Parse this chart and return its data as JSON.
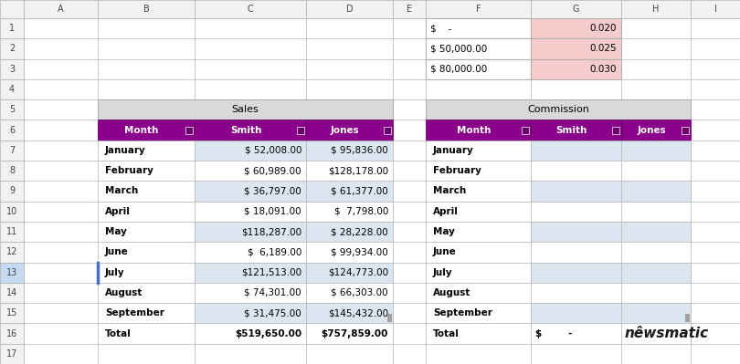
{
  "bg_color": "#ffffff",
  "grid_color": "#b0b0b0",
  "header_bg": "#f2f2f2",
  "purple_bg": "#8B008B",
  "sales_title_bg": "#d9d9d9",
  "commission_title_bg": "#d9d9d9",
  "alt_row_bg": "#dce6f1",
  "salmon_bg": "#f4cccc",
  "top_f_values": [
    "$    -",
    "$ 50,000.00",
    "$ 80,000.00"
  ],
  "top_g_values": [
    "0.020",
    "0.025",
    "0.030"
  ],
  "months": [
    "January",
    "February",
    "March",
    "April",
    "May",
    "June",
    "July",
    "August",
    "September"
  ],
  "smith_values": [
    "$ 52,008.00",
    "$ 60,989.00",
    "$ 36,797.00",
    "$ 18,091.00",
    "$118,287.00",
    "$  6,189.00",
    "$121,513.00",
    "$ 74,301.00",
    "$ 31,475.00"
  ],
  "jones_values": [
    "$ 95,836.00",
    "$128,178.00",
    "$ 61,377.00",
    "$  7,798.00",
    "$ 28,228.00",
    "$ 99,934.00",
    "$124,773.00",
    "$ 66,303.00",
    "$145,432.00"
  ],
  "smith_total": "$519,650.00",
  "jones_total": "$757,859.00",
  "comm_total_smith": "$        -",
  "row13_highlight": "#c5d9f1"
}
